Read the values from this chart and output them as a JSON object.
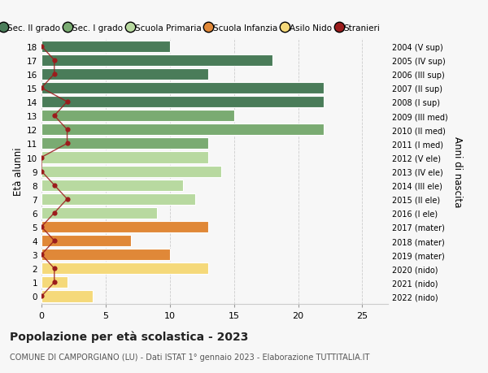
{
  "ages": [
    18,
    17,
    16,
    15,
    14,
    13,
    12,
    11,
    10,
    9,
    8,
    7,
    6,
    5,
    4,
    3,
    2,
    1,
    0
  ],
  "years": [
    "2004 (V sup)",
    "2005 (IV sup)",
    "2006 (III sup)",
    "2007 (II sup)",
    "2008 (I sup)",
    "2009 (III med)",
    "2010 (II med)",
    "2011 (I med)",
    "2012 (V ele)",
    "2013 (IV ele)",
    "2014 (III ele)",
    "2015 (II ele)",
    "2016 (I ele)",
    "2017 (mater)",
    "2018 (mater)",
    "2019 (mater)",
    "2020 (nido)",
    "2021 (nido)",
    "2022 (nido)"
  ],
  "bar_values": [
    10,
    18,
    13,
    22,
    22,
    15,
    22,
    13,
    13,
    14,
    11,
    12,
    9,
    13,
    7,
    10,
    13,
    2,
    4
  ],
  "bar_colors": [
    "#4a7c59",
    "#4a7c59",
    "#4a7c59",
    "#4a7c59",
    "#4a7c59",
    "#7aab72",
    "#7aab72",
    "#7aab72",
    "#b8d9a0",
    "#b8d9a0",
    "#b8d9a0",
    "#b8d9a0",
    "#b8d9a0",
    "#e08838",
    "#e08838",
    "#e08838",
    "#f5d97a",
    "#f5d97a",
    "#f5d97a"
  ],
  "stranieri": [
    0,
    1,
    1,
    0,
    2,
    1,
    2,
    2,
    0,
    0,
    1,
    2,
    1,
    0,
    1,
    0,
    1,
    1,
    0
  ],
  "stranieri_color": "#9b1c1c",
  "legend_labels": [
    "Sec. II grado",
    "Sec. I grado",
    "Scuola Primaria",
    "Scuola Infanzia",
    "Asilo Nido",
    "Stranieri"
  ],
  "legend_colors": [
    "#4a7c59",
    "#7aab72",
    "#b8d9a0",
    "#e08838",
    "#f5d97a",
    "#9b1c1c"
  ],
  "title": "Popolazione per età scolastica - 2023",
  "subtitle": "COMUNE DI CAMPORGIANO (LU) - Dati ISTAT 1° gennaio 2023 - Elaborazione TUTTITALIA.IT",
  "ylabel_left": "Età alunni",
  "ylabel_right": "Anni di nascita",
  "xlim": [
    0,
    27
  ],
  "ylim_min": -0.55,
  "ylim_max": 18.55,
  "xticks": [
    0,
    5,
    10,
    15,
    20,
    25
  ],
  "bg_color": "#f7f7f7",
  "grid_color": "#cccccc",
  "bar_height": 0.82
}
